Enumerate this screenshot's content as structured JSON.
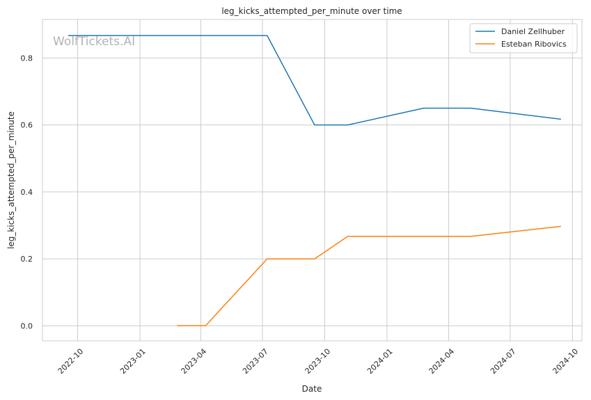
{
  "chart_data": {
    "type": "line",
    "title": "leg_kicks_attempted_per_minute over time",
    "xlabel": "Date",
    "ylabel": "leg_kicks_attempted_per_minute",
    "watermark": "WolfTickets.AI",
    "xlim": [
      "2022-08-10",
      "2024-10-15"
    ],
    "ylim": [
      -0.045,
      0.915
    ],
    "x_ticks": [
      "2022-10",
      "2023-01",
      "2023-04",
      "2023-07",
      "2023-10",
      "2024-01",
      "2024-04",
      "2024-07",
      "2024-10"
    ],
    "y_ticks": [
      "0.0",
      "0.2",
      "0.4",
      "0.6",
      "0.8"
    ],
    "grid": true,
    "legend_position": "top-right",
    "series": [
      {
        "name": "Daniel Zellhuber",
        "color": "#1f77b4",
        "points": [
          {
            "x": "2022-09-17",
            "y": 0.867
          },
          {
            "x": "2023-07-08",
            "y": 0.867
          },
          {
            "x": "2023-09-16",
            "y": 0.6
          },
          {
            "x": "2023-11-04",
            "y": 0.6
          },
          {
            "x": "2024-02-24",
            "y": 0.65
          },
          {
            "x": "2024-05-04",
            "y": 0.65
          },
          {
            "x": "2024-09-14",
            "y": 0.617
          }
        ]
      },
      {
        "name": "Esteban Ribovics",
        "color": "#ff7f0e",
        "points": [
          {
            "x": "2023-02-25",
            "y": 0.0
          },
          {
            "x": "2023-04-08",
            "y": 0.0
          },
          {
            "x": "2023-07-08",
            "y": 0.2
          },
          {
            "x": "2023-09-16",
            "y": 0.2
          },
          {
            "x": "2023-11-04",
            "y": 0.267
          },
          {
            "x": "2024-05-04",
            "y": 0.267
          },
          {
            "x": "2024-09-14",
            "y": 0.297
          }
        ]
      }
    ]
  }
}
